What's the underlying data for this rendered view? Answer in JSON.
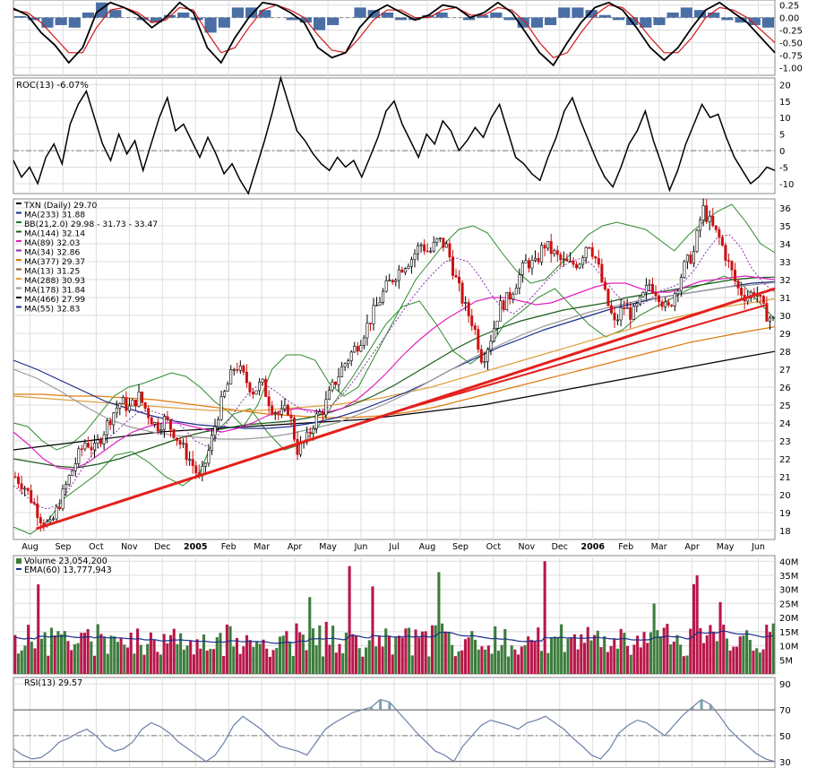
{
  "chart_data": {
    "type": "line",
    "title": "TXN (Daily) 29.70",
    "ticker": "TXN",
    "colors": {
      "price_up": "#1f7a1f",
      "price_down": "#cc1111",
      "trend": "#e4201c",
      "grid": "#dddddd",
      "vol_up": "#3c7d3c",
      "vol_down": "#b8174a",
      "rsi": "#6b7fa8"
    },
    "x_axis": {
      "labels": [
        "Aug",
        "Sep",
        "Oct",
        "Nov",
        "Dec",
        "2005",
        "Feb",
        "Mar",
        "Apr",
        "May",
        "Jun",
        "Jul",
        "Aug",
        "Sep",
        "Oct",
        "Nov",
        "Dec",
        "2006",
        "Feb",
        "Mar",
        "Apr",
        "May",
        "Jun"
      ],
      "bold_labels": [
        "2005",
        "2006"
      ],
      "months": 23
    },
    "macd_panel": {
      "ylabels": [
        "0.25",
        "0.00",
        "-0.25",
        "-0.50",
        "-0.75",
        "-1.00"
      ],
      "ylim": [
        -1.15,
        0.35
      ],
      "macd": [
        0.18,
        0.05,
        -0.3,
        -0.55,
        -0.9,
        -0.6,
        0.1,
        0.3,
        0.2,
        0.05,
        -0.2,
        0.0,
        0.3,
        0.1,
        -0.6,
        -0.9,
        -0.4,
        0.0,
        0.3,
        0.25,
        0.1,
        -0.1,
        -0.6,
        -0.8,
        -0.7,
        -0.2,
        0.1,
        0.25,
        0.1,
        -0.05,
        0.05,
        0.25,
        0.2,
        0.0,
        0.1,
        0.3,
        0.1,
        -0.3,
        -0.7,
        -0.95,
        -0.5,
        -0.1,
        0.2,
        0.3,
        0.15,
        -0.2,
        -0.6,
        -0.85,
        -0.6,
        -0.2,
        0.15,
        0.3,
        0.1,
        -0.1,
        -0.4,
        -0.7
      ],
      "signal": [
        0.15,
        0.1,
        -0.1,
        -0.4,
        -0.7,
        -0.7,
        -0.2,
        0.15,
        0.2,
        0.1,
        -0.1,
        -0.05,
        0.2,
        0.15,
        -0.3,
        -0.7,
        -0.6,
        -0.2,
        0.15,
        0.25,
        0.15,
        0.0,
        -0.35,
        -0.65,
        -0.7,
        -0.4,
        -0.05,
        0.15,
        0.15,
        0.0,
        0.0,
        0.15,
        0.2,
        0.05,
        0.05,
        0.2,
        0.15,
        -0.1,
        -0.5,
        -0.8,
        -0.7,
        -0.3,
        0.05,
        0.25,
        0.2,
        -0.05,
        -0.4,
        -0.7,
        -0.7,
        -0.4,
        0.0,
        0.2,
        0.15,
        0.0,
        -0.25,
        -0.5
      ],
      "hist": [
        0.03,
        -0.05,
        -0.2,
        -0.15,
        -0.2,
        0.1,
        0.3,
        0.15,
        0.0,
        -0.05,
        -0.1,
        0.05,
        0.1,
        -0.05,
        -0.3,
        -0.2,
        0.2,
        0.2,
        0.15,
        0.0,
        -0.05,
        -0.1,
        -0.25,
        -0.15,
        0.0,
        0.2,
        0.15,
        0.1,
        -0.05,
        -0.05,
        0.05,
        0.1,
        0.0,
        -0.05,
        0.05,
        0.1,
        -0.05,
        -0.2,
        -0.2,
        -0.15,
        0.2,
        0.2,
        0.15,
        0.05,
        -0.05,
        -0.15,
        -0.2,
        -0.15,
        0.1,
        0.2,
        0.15,
        0.1,
        -0.05,
        -0.1,
        -0.15,
        -0.2
      ]
    },
    "roc_panel": {
      "label": "ROC(13) -6.07%",
      "ylabels": [
        "20",
        "15",
        "10",
        "5",
        "0",
        "-5",
        "-10"
      ],
      "ylim": [
        -13,
        22
      ],
      "values": [
        -3,
        -8,
        -5,
        -10,
        -2,
        2,
        -4,
        8,
        14,
        18,
        10,
        2,
        -3,
        5,
        -1,
        3,
        -6,
        2,
        10,
        16,
        6,
        8,
        3,
        -2,
        4,
        -1,
        -7,
        -4,
        -9,
        -13,
        -5,
        3,
        12,
        22,
        14,
        6,
        3,
        -1,
        -4,
        -6,
        -2,
        -5,
        -3,
        -8,
        -2,
        4,
        12,
        15,
        8,
        3,
        -2,
        5,
        2,
        9,
        6,
        0,
        3,
        7,
        4,
        10,
        14,
        6,
        -2,
        -4,
        -7,
        -9,
        -2,
        4,
        12,
        16,
        9,
        3,
        -3,
        -8,
        -11,
        -5,
        2,
        6,
        12,
        3,
        -4,
        -12,
        -6,
        2,
        8,
        14,
        10,
        11,
        4,
        -2,
        -6,
        -10,
        -8,
        -5,
        -6
      ]
    },
    "price_panel": {
      "ylabels": [
        "36",
        "35",
        "34",
        "33",
        "32",
        "31",
        "30",
        "29",
        "28",
        "27",
        "26",
        "25",
        "24",
        "23",
        "22",
        "21",
        "20",
        "19",
        "18"
      ],
      "ylim": [
        17.5,
        36.5
      ],
      "legend": [
        {
          "text": "TXN (Daily) 29.70",
          "color": "#000000"
        },
        {
          "text": "MA(233) 31.88",
          "color": "#1a2e8c"
        },
        {
          "text": "BB(21,2.0) 29.98 - 31.73 - 33.47",
          "color": "#1f7a1f"
        },
        {
          "text": "MA(144) 32.14",
          "color": "#1a5c1a"
        },
        {
          "text": "MA(89) 32.03",
          "color": "#e020c0"
        },
        {
          "text": "MA(34) 32.86",
          "color": "#8a2ea8"
        },
        {
          "text": "MA(377) 29.37",
          "color": "#e07a10"
        },
        {
          "text": "MA(13) 31.25",
          "color": "#8a5a2a"
        },
        {
          "text": "MA(288) 30.93",
          "color": "#e0a040"
        },
        {
          "text": "MA(178) 31.84",
          "color": "#999999"
        },
        {
          "text": "MA(466) 27.99",
          "color": "#000000"
        },
        {
          "text": "MA(55) 32.83",
          "color": "#1a2e8c"
        }
      ],
      "close": [
        21.0,
        20.5,
        19.6,
        18.6,
        18.2,
        19.5,
        20.8,
        22.0,
        23.0,
        22.5,
        23.5,
        24.5,
        25.2,
        24.8,
        25.5,
        24.6,
        23.8,
        24.2,
        23.5,
        22.6,
        21.8,
        20.8,
        22.5,
        24.5,
        26.0,
        27.3,
        26.5,
        25.8,
        26.2,
        25.0,
        24.4,
        24.8,
        22.5,
        23.0,
        24.2,
        24.8,
        26.0,
        27.0,
        27.8,
        28.5,
        29.5,
        30.5,
        31.5,
        32.2,
        32.8,
        33.2,
        34.0,
        33.5,
        34.2,
        33.8,
        32.0,
        30.5,
        29.5,
        27.5,
        28.8,
        30.5,
        31.0,
        32.0,
        33.0,
        32.8,
        34.0,
        33.5,
        33.0,
        32.8,
        33.0,
        34.2,
        33.0,
        31.0,
        29.5,
        30.5,
        30.0,
        30.8,
        31.8,
        31.2,
        30.2,
        31.5,
        32.8,
        33.5,
        36.0,
        35.0,
        34.2,
        32.8,
        31.5,
        31.0,
        31.4,
        30.2,
        29.7
      ],
      "bb_upper": [
        24.0,
        23.8,
        23.0,
        22.5,
        22.8,
        23.5,
        24.5,
        25.5,
        26.0,
        26.2,
        26.5,
        26.8,
        26.6,
        26.0,
        25.2,
        24.6,
        23.8,
        25.0,
        27.0,
        27.8,
        27.8,
        27.5,
        26.2,
        25.5,
        26.0,
        27.5,
        29.0,
        30.5,
        32.0,
        33.0,
        34.0,
        34.8,
        35.0,
        34.6,
        33.5,
        32.5,
        31.8,
        32.0,
        32.8,
        33.6,
        34.5,
        35.0,
        35.2,
        35.0,
        34.8,
        34.2,
        33.6,
        34.5,
        35.2,
        35.8,
        36.2,
        35.2,
        34.0,
        33.5
      ],
      "bb_lower": [
        18.2,
        17.8,
        18.5,
        19.8,
        20.5,
        21.2,
        22.2,
        22.4,
        21.8,
        21.0,
        20.5,
        21.2,
        23.5,
        24.5,
        24.8,
        23.5,
        22.5,
        22.8,
        23.8,
        25.2,
        26.5,
        28.0,
        29.5,
        30.5,
        30.8,
        29.5,
        28.0,
        27.3,
        28.0,
        29.5,
        30.2,
        31.0,
        31.5,
        30.5,
        29.5,
        28.8,
        29.2,
        30.0,
        30.5,
        31.0,
        31.5,
        31.8,
        32.2,
        31.8,
        30.8,
        29.8
      ],
      "ma_fast": [
        20.5,
        20.0,
        19.4,
        19.2,
        19.5,
        20.4,
        21.4,
        22.3,
        23.0,
        23.5,
        24.1,
        24.6,
        24.7,
        24.5,
        24.2,
        23.7,
        23.0,
        22.7,
        23.3,
        24.2,
        25.1,
        25.9,
        26.2,
        25.8,
        25.3,
        24.9,
        24.6,
        24.6,
        25.0,
        25.6,
        26.4,
        27.3,
        28.2,
        29.1,
        30.0,
        30.9,
        31.7,
        32.4,
        33.0,
        33.2,
        33.0,
        32.2,
        31.2,
        30.4,
        30.1,
        30.6,
        31.3,
        32.0,
        32.6,
        33.0,
        33.2,
        32.8,
        32.0,
        31.2,
        30.6,
        30.5,
        30.9,
        31.4,
        31.6,
        31.9,
        32.6,
        33.6,
        34.4,
        34.5,
        33.8,
        32.6,
        31.8,
        31.3
      ],
      "ma89": [
        23.5,
        22.8,
        22.0,
        21.5,
        21.4,
        21.8,
        22.4,
        23.0,
        23.5,
        23.8,
        24.0,
        24.0,
        23.8,
        23.6,
        23.5,
        23.7,
        24.0,
        24.4,
        24.7,
        24.8,
        24.7,
        24.6,
        24.8,
        25.3,
        26.0,
        26.8,
        27.7,
        28.5,
        29.2,
        29.8,
        30.3,
        30.8,
        31.0,
        31.0,
        30.8,
        30.6,
        30.7,
        31.0,
        31.3,
        31.6,
        31.8,
        31.8,
        31.5,
        31.3,
        31.3,
        31.6,
        31.9,
        32.0,
        32.1,
        32.2,
        32.1,
        32.0
      ],
      "ma144": [
        22.0,
        21.8,
        21.6,
        21.5,
        21.7,
        22.0,
        22.4,
        22.8,
        23.2,
        23.5,
        23.7,
        23.9,
        24.0,
        24.1,
        24.3,
        24.6,
        25.0,
        25.5,
        26.1,
        26.8,
        27.5,
        28.2,
        28.8,
        29.3,
        29.7,
        30.0,
        30.3,
        30.5,
        30.7,
        31.0,
        31.2,
        31.4,
        31.6,
        31.8,
        32.0,
        32.1,
        32.14
      ],
      "ma178": [
        27.0,
        26.5,
        25.8,
        25.0,
        24.3,
        23.8,
        23.5,
        23.3,
        23.2,
        23.1,
        23.1,
        23.2,
        23.4,
        23.7,
        24.0,
        24.5,
        25.0,
        25.6,
        26.3,
        27.0,
        27.7,
        28.3,
        28.9,
        29.4,
        29.8,
        30.2,
        30.5,
        30.8,
        31.0,
        31.2,
        31.4,
        31.6,
        31.7,
        31.84
      ],
      "ma233": [
        27.5,
        27.0,
        26.4,
        25.8,
        25.2,
        24.8,
        24.4,
        24.1,
        23.9,
        23.8,
        23.7,
        23.7,
        23.8,
        24.0,
        24.3,
        24.7,
        25.2,
        25.7,
        26.3,
        27.0,
        27.6,
        28.2,
        28.7,
        29.2,
        29.6,
        30.0,
        30.4,
        30.7,
        31.0,
        31.2,
        31.4,
        31.6,
        31.8,
        31.88
      ],
      "ma288": [
        25.5,
        25.4,
        25.3,
        25.2,
        25.1,
        25.0,
        24.9,
        24.8,
        24.7,
        24.7,
        24.7,
        24.8,
        24.9,
        25.0,
        25.2,
        25.4,
        25.7,
        26.0,
        26.4,
        26.8,
        27.2,
        27.6,
        28.0,
        28.4,
        28.8,
        29.2,
        29.6,
        29.9,
        30.2,
        30.5,
        30.7,
        30.93
      ],
      "ma377": [
        25.6,
        25.6,
        25.5,
        25.5,
        25.4,
        25.3,
        25.1,
        24.9,
        24.7,
        24.5,
        24.4,
        24.3,
        24.3,
        24.4,
        24.6,
        24.9,
        25.3,
        25.7,
        26.1,
        26.5,
        26.9,
        27.3,
        27.7,
        28.1,
        28.5,
        28.8,
        29.1,
        29.37
      ],
      "ma466": [
        22.5,
        22.7,
        22.9,
        23.1,
        23.3,
        23.5,
        23.6,
        23.7,
        23.8,
        23.9,
        24.0,
        24.1,
        24.2,
        24.4,
        24.6,
        24.8,
        25.0,
        25.3,
        25.6,
        25.9,
        26.2,
        26.5,
        26.8,
        27.1,
        27.4,
        27.7,
        27.99
      ],
      "trendlines": [
        {
          "from": [
            0.03,
            18.1
          ],
          "to": [
            1.0,
            31.5
          ],
          "width": 3
        },
        {
          "from": [
            0.5,
            24.6
          ],
          "to": [
            0.99,
            30.6
          ],
          "width": 2
        }
      ]
    },
    "volume_panel": {
      "label": "Volume 23,054,200",
      "ema_label": "EMA(60) 13,777,943",
      "ylabels": [
        "40M",
        "35M",
        "30M",
        "25M",
        "20M",
        "15M",
        "10M",
        "5M"
      ],
      "ylim": [
        0,
        42
      ]
    },
    "rsi_panel": {
      "label": "RSI(13) 29.57",
      "ylabels": [
        "90",
        "70",
        "50",
        "30"
      ],
      "ylim": [
        25,
        95
      ],
      "values": [
        40,
        35,
        32,
        33,
        38,
        45,
        48,
        52,
        55,
        50,
        42,
        38,
        40,
        45,
        55,
        60,
        57,
        52,
        45,
        40,
        35,
        30,
        35,
        45,
        58,
        65,
        60,
        55,
        48,
        42,
        40,
        38,
        35,
        45,
        55,
        60,
        64,
        68,
        70,
        72,
        78,
        76,
        68,
        60,
        52,
        45,
        38,
        35,
        30,
        42,
        50,
        58,
        62,
        60,
        58,
        55,
        60,
        62,
        65,
        60,
        55,
        48,
        42,
        35,
        32,
        40,
        52,
        58,
        62,
        60,
        55,
        50,
        58,
        66,
        72,
        78,
        74,
        65,
        55,
        48,
        42,
        36,
        32,
        30
      ]
    }
  }
}
